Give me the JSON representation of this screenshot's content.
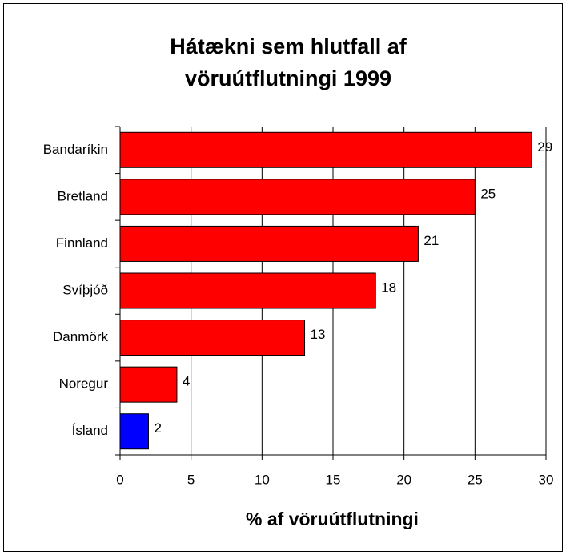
{
  "chart_data": {
    "type": "barh",
    "title": "Hátækni sem hlutfall af vöruútflutningi 1999",
    "categories": [
      "Bandaríkin",
      "Bretland",
      "Finnland",
      "Svíþjóð",
      "Danmörk",
      "Noregur",
      "Ísland"
    ],
    "values": [
      29,
      25,
      21,
      18,
      13,
      4,
      2
    ],
    "colors": [
      "#ff0000",
      "#ff0000",
      "#ff0000",
      "#ff0000",
      "#ff0000",
      "#ff0000",
      "#0000ff"
    ],
    "xlabel": "% af vöruútflutningi",
    "xlim": [
      0,
      30
    ],
    "xticks": [
      0,
      5,
      10,
      15,
      20,
      25,
      30
    ],
    "grid": true
  }
}
